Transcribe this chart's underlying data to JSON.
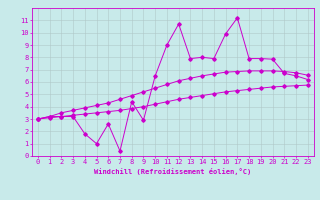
{
  "xlabel": "Windchill (Refroidissement éolien,°C)",
  "background_color": "#c8eaea",
  "line_color": "#cc00cc",
  "grid_color": "#b0c8c8",
  "x_data": [
    0,
    1,
    2,
    3,
    4,
    5,
    6,
    7,
    8,
    9,
    10,
    11,
    12,
    13,
    14,
    15,
    16,
    17,
    18,
    19,
    20,
    21,
    22,
    23
  ],
  "y_main": [
    3.0,
    3.2,
    3.2,
    3.2,
    1.8,
    1.0,
    2.6,
    0.4,
    4.4,
    2.9,
    6.5,
    9.0,
    10.7,
    7.9,
    8.0,
    7.9,
    9.9,
    11.2,
    7.9,
    7.9,
    7.85,
    6.7,
    6.5,
    6.2
  ],
  "y_upper": [
    3.0,
    3.2,
    3.5,
    3.7,
    3.9,
    4.1,
    4.3,
    4.6,
    4.9,
    5.2,
    5.5,
    5.8,
    6.1,
    6.3,
    6.5,
    6.65,
    6.8,
    6.85,
    6.9,
    6.9,
    6.9,
    6.85,
    6.75,
    6.55
  ],
  "y_lower": [
    3.0,
    3.1,
    3.2,
    3.3,
    3.4,
    3.5,
    3.6,
    3.7,
    3.85,
    4.0,
    4.2,
    4.4,
    4.6,
    4.75,
    4.9,
    5.05,
    5.2,
    5.3,
    5.4,
    5.5,
    5.6,
    5.65,
    5.7,
    5.75
  ],
  "xlim": [
    -0.5,
    23.5
  ],
  "ylim": [
    0,
    12
  ],
  "yticks": [
    0,
    1,
    2,
    3,
    4,
    5,
    6,
    7,
    8,
    9,
    10,
    11
  ],
  "xticks": [
    0,
    1,
    2,
    3,
    4,
    5,
    6,
    7,
    8,
    9,
    10,
    11,
    12,
    13,
    14,
    15,
    16,
    17,
    18,
    19,
    20,
    21,
    22,
    23
  ],
  "tick_fontsize": 5,
  "xlabel_fontsize": 5,
  "marker_size": 1.8,
  "linewidth": 0.7
}
